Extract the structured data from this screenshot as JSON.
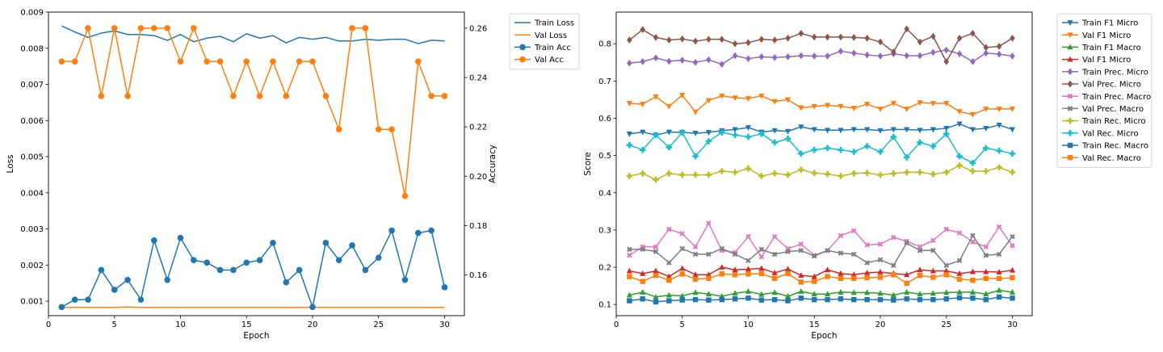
{
  "chart_data": [
    {
      "type": "line",
      "title": "",
      "xlabel": "Epoch",
      "ylabel": "Loss",
      "y2label": "Accuracy",
      "xlim": [
        0,
        31.5
      ],
      "ylim": [
        0.0006,
        0.009
      ],
      "y2lim": [
        0.1435,
        0.2665
      ],
      "x_ticks": [
        0,
        5,
        10,
        15,
        20,
        25,
        30
      ],
      "y_ticks": [
        0.001,
        0.002,
        0.003,
        0.004,
        0.005,
        0.006,
        0.007,
        0.008,
        0.009
      ],
      "y_tick_labels": [
        "0.001",
        "0.002",
        "0.003",
        "0.004",
        "0.005",
        "0.006",
        "0.007",
        "0.008",
        "0.009"
      ],
      "y2_ticks": [
        0.16,
        0.18,
        0.2,
        0.22,
        0.24,
        0.26
      ],
      "y2_tick_labels": [
        "0.16",
        "0.18",
        "0.20",
        "0.22",
        "0.24",
        "0.26"
      ],
      "grid": false,
      "legend_position": "outside-top-right",
      "x": [
        1,
        2,
        3,
        4,
        5,
        6,
        7,
        8,
        9,
        10,
        11,
        12,
        13,
        14,
        15,
        16,
        17,
        18,
        19,
        20,
        21,
        22,
        23,
        24,
        25,
        26,
        27,
        28,
        29,
        30
      ],
      "series": [
        {
          "name": "Train Loss",
          "axis": "left",
          "color": "#1f77b4",
          "marker": "none",
          "values": [
            0.00862,
            0.00845,
            0.0083,
            0.00842,
            0.00848,
            0.00838,
            0.00838,
            0.00835,
            0.00822,
            0.00838,
            0.00818,
            0.00828,
            0.00833,
            0.00818,
            0.0084,
            0.00828,
            0.00835,
            0.00815,
            0.0083,
            0.00825,
            0.0083,
            0.0082,
            0.0082,
            0.00825,
            0.00822,
            0.00825,
            0.00825,
            0.00813,
            0.00822,
            0.0082
          ]
        },
        {
          "name": "Val Loss",
          "axis": "left",
          "color": "#ff7f0e",
          "marker": "none",
          "values": [
            0.00083,
            0.00083,
            0.00083,
            0.00083,
            0.00083,
            0.00084,
            0.00083,
            0.00083,
            0.00083,
            0.00083,
            0.00083,
            0.00083,
            0.00083,
            0.00083,
            0.00083,
            0.00083,
            0.00083,
            0.00083,
            0.00083,
            0.00083,
            0.00083,
            0.00083,
            0.00083,
            0.00083,
            0.00083,
            0.00083,
            0.00083,
            0.00083,
            0.00083,
            0.00083
          ]
        },
        {
          "name": "Train Acc",
          "axis": "right",
          "color": "#1f77b4",
          "marker": "circle",
          "values": [
            0.147,
            0.15,
            0.15,
            0.162,
            0.154,
            0.158,
            0.15,
            0.174,
            0.158,
            0.175,
            0.166,
            0.165,
            0.162,
            0.162,
            0.165,
            0.166,
            0.173,
            0.157,
            0.162,
            0.147,
            0.173,
            0.166,
            0.172,
            0.162,
            0.167,
            0.178,
            0.158,
            0.177,
            0.178,
            0.155
          ]
        },
        {
          "name": "Val Acc",
          "axis": "right",
          "color": "#ff7f0e",
          "marker": "circle",
          "values": [
            0.2465,
            0.2465,
            0.26,
            0.2325,
            0.26,
            0.2325,
            0.26,
            0.26,
            0.26,
            0.2465,
            0.26,
            0.2465,
            0.2465,
            0.2325,
            0.2465,
            0.2325,
            0.2465,
            0.2325,
            0.2465,
            0.2465,
            0.2325,
            0.219,
            0.26,
            0.26,
            0.219,
            0.219,
            0.192,
            0.2465,
            0.2325,
            0.2325
          ]
        }
      ]
    },
    {
      "type": "line",
      "title": "",
      "xlabel": "Epoch",
      "ylabel": "Score",
      "xlim": [
        0,
        31.5
      ],
      "ylim": [
        0.07,
        0.885
      ],
      "x_ticks": [
        0,
        5,
        10,
        15,
        20,
        25,
        30
      ],
      "y_ticks": [
        0.1,
        0.2,
        0.3,
        0.4,
        0.5,
        0.6,
        0.7,
        0.8
      ],
      "y_tick_labels": [
        "0.1",
        "0.2",
        "0.3",
        "0.4",
        "0.5",
        "0.6",
        "0.7",
        "0.8"
      ],
      "grid": false,
      "legend_position": "outside-top-right",
      "x": [
        1,
        2,
        3,
        4,
        5,
        6,
        7,
        8,
        9,
        10,
        11,
        12,
        13,
        14,
        15,
        16,
        17,
        18,
        19,
        20,
        21,
        22,
        23,
        24,
        25,
        26,
        27,
        28,
        29,
        30
      ],
      "series": [
        {
          "name": "Train F1 Micro",
          "color": "#1f77b4",
          "marker": "triangle-down",
          "values": [
            0.558,
            0.563,
            0.555,
            0.563,
            0.562,
            0.56,
            0.562,
            0.567,
            0.57,
            0.575,
            0.563,
            0.567,
            0.565,
            0.577,
            0.57,
            0.568,
            0.568,
            0.57,
            0.57,
            0.567,
            0.57,
            0.57,
            0.568,
            0.57,
            0.573,
            0.585,
            0.57,
            0.573,
            0.582,
            0.57
          ]
        },
        {
          "name": "Val F1 Micro",
          "color": "#ff7f0e",
          "marker": "triangle-down",
          "values": [
            0.64,
            0.638,
            0.658,
            0.632,
            0.662,
            0.617,
            0.648,
            0.66,
            0.655,
            0.653,
            0.66,
            0.645,
            0.65,
            0.628,
            0.632,
            0.635,
            0.632,
            0.627,
            0.638,
            0.625,
            0.64,
            0.625,
            0.642,
            0.64,
            0.64,
            0.618,
            0.61,
            0.625,
            0.625,
            0.625
          ]
        },
        {
          "name": "Train F1 Macro",
          "color": "#2ca02c",
          "marker": "triangle-up",
          "values": [
            0.125,
            0.133,
            0.12,
            0.125,
            0.123,
            0.132,
            0.128,
            0.122,
            0.13,
            0.135,
            0.127,
            0.132,
            0.122,
            0.135,
            0.128,
            0.128,
            0.133,
            0.132,
            0.132,
            0.13,
            0.125,
            0.133,
            0.128,
            0.13,
            0.132,
            0.133,
            0.133,
            0.128,
            0.138,
            0.133
          ]
        },
        {
          "name": "Val F1 Micro",
          "color": "#d62728",
          "marker": "triangle-up",
          "values": [
            0.19,
            0.183,
            0.19,
            0.175,
            0.197,
            0.18,
            0.18,
            0.2,
            0.193,
            0.195,
            0.197,
            0.185,
            0.195,
            0.178,
            0.175,
            0.193,
            0.183,
            0.18,
            0.185,
            0.187,
            0.183,
            0.18,
            0.193,
            0.19,
            0.19,
            0.183,
            0.188,
            0.188,
            0.187,
            0.192
          ]
        },
        {
          "name": "Train Prec. Micro",
          "color": "#9467bd",
          "marker": "diamond",
          "values": [
            0.748,
            0.752,
            0.762,
            0.753,
            0.756,
            0.75,
            0.757,
            0.745,
            0.768,
            0.76,
            0.765,
            0.763,
            0.765,
            0.768,
            0.767,
            0.767,
            0.78,
            0.775,
            0.77,
            0.767,
            0.773,
            0.768,
            0.768,
            0.777,
            0.783,
            0.773,
            0.752,
            0.775,
            0.772,
            0.767
          ]
        },
        {
          "name": "Val Prec. Micro",
          "color": "#8c564b",
          "marker": "diamond",
          "values": [
            0.81,
            0.838,
            0.817,
            0.81,
            0.813,
            0.807,
            0.812,
            0.812,
            0.8,
            0.803,
            0.812,
            0.81,
            0.815,
            0.828,
            0.818,
            0.818,
            0.818,
            0.817,
            0.815,
            0.805,
            0.778,
            0.84,
            0.805,
            0.82,
            0.752,
            0.815,
            0.828,
            0.79,
            0.793,
            0.815
          ]
        },
        {
          "name": "Train Prec. Macro",
          "color": "#e377c2",
          "marker": "x",
          "values": [
            0.232,
            0.255,
            0.255,
            0.302,
            0.29,
            0.255,
            0.318,
            0.245,
            0.24,
            0.282,
            0.228,
            0.282,
            0.25,
            0.262,
            0.232,
            0.245,
            0.285,
            0.298,
            0.26,
            0.262,
            0.28,
            0.27,
            0.255,
            0.272,
            0.302,
            0.292,
            0.268,
            0.255,
            0.308,
            0.258
          ]
        },
        {
          "name": "Val Prec. Macro",
          "color": "#7f7f7f",
          "marker": "x",
          "values": [
            0.248,
            0.248,
            0.242,
            0.212,
            0.25,
            0.235,
            0.235,
            0.25,
            0.235,
            0.218,
            0.248,
            0.235,
            0.242,
            0.245,
            0.23,
            0.245,
            0.238,
            0.235,
            0.212,
            0.22,
            0.205,
            0.265,
            0.245,
            0.245,
            0.205,
            0.218,
            0.285,
            0.232,
            0.235,
            0.282
          ]
        },
        {
          "name": "Train Rec. Micro",
          "color": "#bcbd22",
          "marker": "plus",
          "values": [
            0.445,
            0.452,
            0.435,
            0.452,
            0.448,
            0.448,
            0.448,
            0.458,
            0.455,
            0.465,
            0.445,
            0.452,
            0.448,
            0.462,
            0.453,
            0.45,
            0.445,
            0.452,
            0.453,
            0.448,
            0.452,
            0.455,
            0.455,
            0.45,
            0.455,
            0.473,
            0.458,
            0.458,
            0.468,
            0.455
          ]
        },
        {
          "name": "Val Rec. Micro",
          "color": "#17becf",
          "marker": "plus",
          "values": [
            0.528,
            0.515,
            0.555,
            0.522,
            0.562,
            0.498,
            0.538,
            0.562,
            0.555,
            0.55,
            0.558,
            0.535,
            0.545,
            0.505,
            0.515,
            0.52,
            0.515,
            0.51,
            0.525,
            0.51,
            0.55,
            0.495,
            0.535,
            0.525,
            0.558,
            0.498,
            0.48,
            0.52,
            0.513,
            0.505
          ]
        },
        {
          "name": "Train Rec. Macro",
          "color": "#1f77b4",
          "marker": "square",
          "values": [
            0.11,
            0.115,
            0.107,
            0.11,
            0.112,
            0.113,
            0.112,
            0.113,
            0.115,
            0.117,
            0.112,
            0.113,
            0.11,
            0.117,
            0.113,
            0.113,
            0.115,
            0.113,
            0.113,
            0.113,
            0.112,
            0.115,
            0.113,
            0.113,
            0.115,
            0.118,
            0.117,
            0.113,
            0.12,
            0.117
          ]
        },
        {
          "name": "Val Rec. Macro",
          "color": "#ff7f0e",
          "marker": "square",
          "values": [
            0.175,
            0.162,
            0.178,
            0.165,
            0.182,
            0.168,
            0.17,
            0.182,
            0.18,
            0.182,
            0.183,
            0.17,
            0.183,
            0.16,
            0.162,
            0.175,
            0.17,
            0.17,
            0.172,
            0.173,
            0.18,
            0.157,
            0.178,
            0.173,
            0.18,
            0.168,
            0.165,
            0.17,
            0.17,
            0.172
          ]
        }
      ]
    }
  ]
}
